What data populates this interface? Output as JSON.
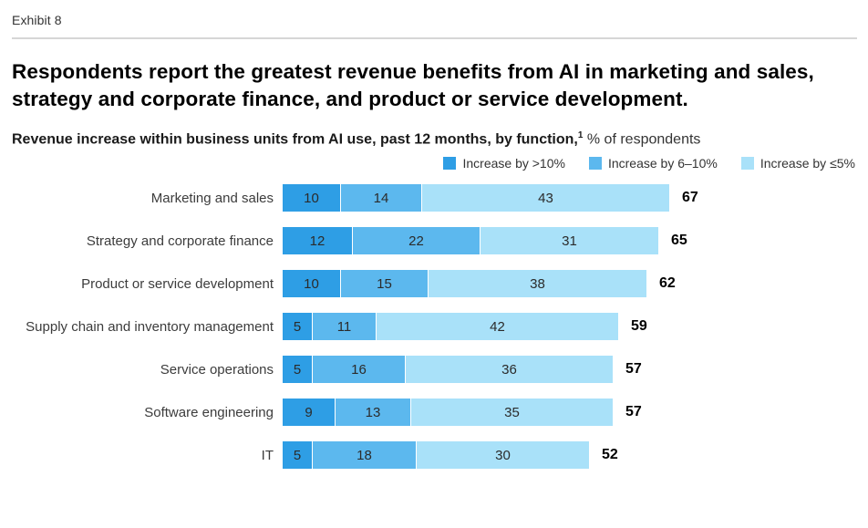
{
  "exhibit_label": "Exhibit 8",
  "title": "Respondents report the greatest revenue benefits from AI in marketing and sales, strategy and corporate finance, and product or service development.",
  "subtitle": {
    "bold": "Revenue increase within business units from AI use, past 12 months, by function,",
    "superscript": "1",
    "regular": " % of respondents"
  },
  "colors": {
    "increase_gt_10_pct": "#2E9EE5",
    "increase_6_to_10_pct": "#5CB8EE",
    "increase_lte_5_pct": "#A9E1F9"
  },
  "chart_data": {
    "type": "bar",
    "orientation": "horizontal",
    "stacked": true,
    "title": "Revenue increase within business units from AI use, past 12 months, by function, % of respondents",
    "categories": [
      "Marketing and sales",
      "Strategy and corporate finance",
      "Product or service development",
      "Supply chain and inventory management",
      "Service operations",
      "Software engineering",
      "IT"
    ],
    "series": [
      {
        "name": "Increase by >10%",
        "color": "#2E9EE5",
        "values": [
          10,
          12,
          10,
          5,
          5,
          9,
          5
        ]
      },
      {
        "name": "Increase by 6–10%",
        "color": "#5CB8EE",
        "values": [
          14,
          22,
          15,
          11,
          16,
          13,
          18
        ]
      },
      {
        "name": "Increase by ≤5%",
        "color": "#A9E1F9",
        "values": [
          43,
          31,
          38,
          42,
          36,
          35,
          30
        ]
      }
    ],
    "totals": [
      67,
      65,
      62,
      59,
      57,
      57,
      52
    ],
    "xlim": [
      0,
      67
    ],
    "legend_position": "top-right",
    "value_labels": "inside-segments",
    "total_labels": "right-of-bar",
    "grid": false
  }
}
